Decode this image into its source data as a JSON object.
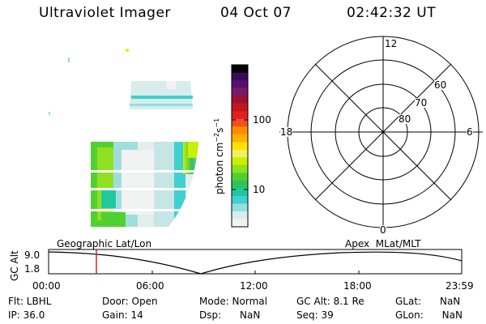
{
  "header": {
    "instrument": "Ultraviolet Imager",
    "date": "04 Oct 07",
    "time": "02:42:32 UT"
  },
  "colorbar": {
    "unit_label": "photon cm",
    "unit_exp1": "−2",
    "unit_mid": "s",
    "unit_exp2": "−1",
    "ticks": [
      "100",
      "10"
    ],
    "colors": [
      "#000000",
      "#3a0a5a",
      "#5a1070",
      "#7a1a6a",
      "#a01030",
      "#c01820",
      "#e02020",
      "#f05020",
      "#ff8c00",
      "#ffb000",
      "#ffe000",
      "#f0f060",
      "#c8f000",
      "#90e020",
      "#50d030",
      "#30c060",
      "#20c8a0",
      "#40d0d0",
      "#90e0e0",
      "#d8ecec",
      "#f2f2f2"
    ]
  },
  "polar": {
    "mlt_labels": {
      "top": "12",
      "right": "6",
      "bottom": "0",
      "left": "18"
    },
    "lat_labels": [
      "60",
      "70",
      "80"
    ]
  },
  "timeline": {
    "ylabel": "GC Alt",
    "y_top": "9.0",
    "y_bottom": "1.8",
    "left_title": "Geographic Lat/Lon",
    "right_title": "Apex  MLat/MLT",
    "ticks": [
      "00:00",
      "06:00",
      "12:00",
      "18:00",
      "23:59"
    ],
    "marker_color": "#e02020"
  },
  "status": {
    "flt": "Flt: LBHL",
    "ip": "IP: 36.0",
    "door": "Door: Open",
    "gain": "Gain: 14",
    "mode": "Mode: Normal",
    "dsp": "Dsp:      NaN",
    "gc_alt": "GC Alt: 8.1 Re",
    "seq": "Seq: 39",
    "glat": "GLat:      NaN",
    "glon": "GLon:      NaN"
  }
}
